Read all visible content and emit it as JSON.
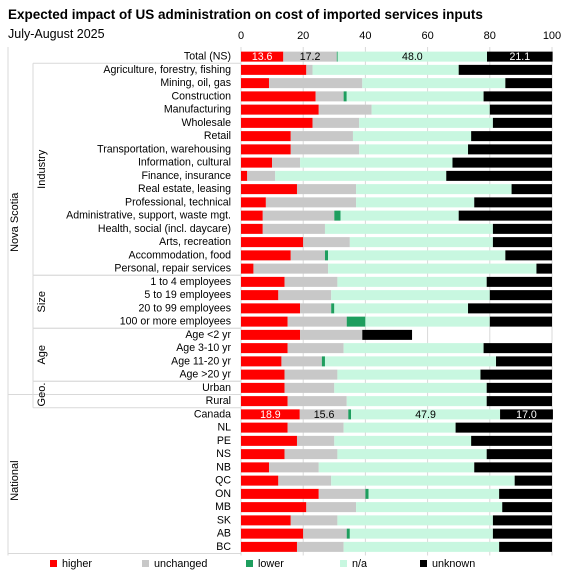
{
  "chart_data": {
    "type": "bar",
    "orientation": "horizontal",
    "stacked": true,
    "title": "Expected impact of US administration on cost of imported services inputs",
    "subtitle": "July-August 2025",
    "xlim": [
      0,
      100
    ],
    "xticks": [
      "0",
      "20",
      "40",
      "60",
      "80",
      "100"
    ],
    "grid": true,
    "legend_position": "bottom",
    "series": [
      {
        "name": "higher",
        "color": "#ff0000"
      },
      {
        "name": "unchanged",
        "color": "#c8c8c8"
      },
      {
        "name": "lower",
        "color": "#1e9e5e"
      },
      {
        "name": "n/a",
        "color": "#c8f7e0"
      },
      {
        "name": "unknown",
        "color": "#000000"
      }
    ],
    "groups": [
      {
        "label": "Nova Scotia",
        "level": 1,
        "first": 0,
        "last": 25
      },
      {
        "label": "Industry",
        "level": 2,
        "first": 1,
        "last": 16
      },
      {
        "label": "Size",
        "level": 2,
        "first": 17,
        "last": 20
      },
      {
        "label": "Age",
        "level": 2,
        "first": 21,
        "last": 24
      },
      {
        "label": "Geo.",
        "level": 2,
        "first": 25,
        "last": 26
      },
      {
        "label": "National",
        "level": 1,
        "first": 27,
        "last": 37
      }
    ],
    "categories": [
      {
        "label": "Total (NS)",
        "values": [
          13.6,
          17.2,
          0.3,
          48.0,
          21.1
        ],
        "data_labels": [
          "13.6",
          "17.2",
          "",
          "48.0",
          "21.1"
        ]
      },
      {
        "label": "Agriculture, forestry, fishing",
        "values": [
          21,
          2,
          0,
          47,
          30
        ]
      },
      {
        "label": "Mining, oil, gas",
        "values": [
          9,
          30,
          0,
          46,
          15
        ]
      },
      {
        "label": "Construction",
        "values": [
          24,
          9,
          1,
          44,
          22
        ]
      },
      {
        "label": "Manufacturing",
        "values": [
          25,
          17,
          0,
          38,
          20
        ]
      },
      {
        "label": "Wholesale",
        "values": [
          23,
          15,
          0,
          43,
          19
        ]
      },
      {
        "label": "Retail",
        "values": [
          16,
          20,
          0,
          38,
          26
        ]
      },
      {
        "label": "Transportation, warehousing",
        "values": [
          16,
          22,
          0,
          35,
          27
        ]
      },
      {
        "label": "Information, cultural",
        "values": [
          10,
          9,
          0,
          49,
          32
        ]
      },
      {
        "label": "Finance, insurance",
        "values": [
          2,
          9,
          0,
          55,
          34
        ]
      },
      {
        "label": "Real estate, leasing",
        "values": [
          18,
          19,
          0,
          50,
          13
        ]
      },
      {
        "label": "Professional, technical",
        "values": [
          8,
          29,
          0,
          38,
          25
        ]
      },
      {
        "label": "Administrative, support, waste mgt.",
        "values": [
          7,
          23,
          2,
          38,
          30
        ]
      },
      {
        "label": "Health, social (incl. daycare)",
        "values": [
          7,
          20,
          0,
          54,
          19
        ]
      },
      {
        "label": "Arts, recreation",
        "values": [
          20,
          15,
          0,
          46,
          19
        ]
      },
      {
        "label": "Accommodation, food",
        "values": [
          16,
          11,
          1,
          57,
          15
        ]
      },
      {
        "label": "Personal, repair services",
        "values": [
          4,
          24,
          0,
          67,
          5
        ]
      },
      {
        "label": "1 to 4 employees",
        "values": [
          14,
          17,
          0,
          48,
          21
        ]
      },
      {
        "label": "5 to 19 employees",
        "values": [
          12,
          17,
          0,
          51,
          20
        ]
      },
      {
        "label": "20 to 99 employees",
        "values": [
          19,
          10,
          1,
          43,
          27
        ]
      },
      {
        "label": "100 or more employees",
        "values": [
          15,
          19,
          6,
          40,
          20
        ]
      },
      {
        "label": "Age <2 yr",
        "values": [
          19,
          20,
          0,
          0,
          16
        ]
      },
      {
        "label": "Age 3-10 yr",
        "values": [
          15,
          18,
          0,
          45,
          22
        ]
      },
      {
        "label": "Age 11-20 yr",
        "values": [
          13,
          13,
          1,
          55,
          18
        ]
      },
      {
        "label": "Age >20 yr",
        "values": [
          14,
          17,
          0,
          46,
          23
        ]
      },
      {
        "label": "Urban",
        "values": [
          14,
          16,
          0,
          49,
          21
        ]
      },
      {
        "label": "Rural",
        "values": [
          15,
          19,
          0,
          45,
          21
        ]
      },
      {
        "label": "Canada",
        "values": [
          18.9,
          15.6,
          0.9,
          47.9,
          17.0
        ],
        "data_labels": [
          "18.9",
          "15.6",
          "",
          "47.9",
          "17.0"
        ]
      },
      {
        "label": "NL",
        "values": [
          15,
          18,
          0,
          36,
          31
        ]
      },
      {
        "label": "PE",
        "values": [
          18,
          12,
          0,
          44,
          26
        ]
      },
      {
        "label": "NS",
        "values": [
          14,
          17,
          0,
          48,
          21
        ]
      },
      {
        "label": "NB",
        "values": [
          9,
          16,
          0,
          50,
          25
        ]
      },
      {
        "label": "QC",
        "values": [
          12,
          17,
          0,
          59,
          12
        ]
      },
      {
        "label": "ON",
        "values": [
          25,
          15,
          1,
          42,
          17
        ]
      },
      {
        "label": "MB",
        "values": [
          21,
          16,
          0,
          47,
          16
        ]
      },
      {
        "label": "SK",
        "values": [
          16,
          15,
          0,
          50,
          19
        ]
      },
      {
        "label": "AB",
        "values": [
          20,
          14,
          1,
          46,
          19
        ]
      },
      {
        "label": "BC",
        "values": [
          18,
          15,
          0,
          50,
          17
        ]
      }
    ]
  }
}
